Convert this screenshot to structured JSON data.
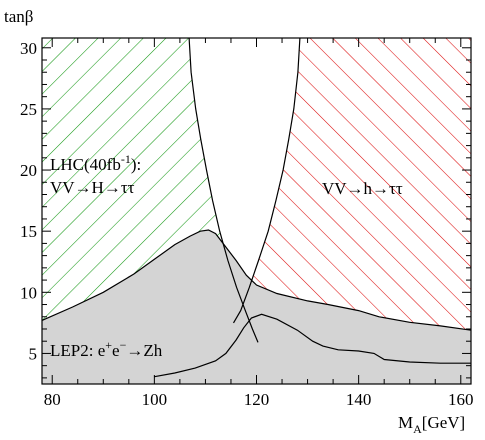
{
  "chart_data": {
    "type": "area",
    "title": "",
    "ylabel": "tanβ",
    "xlabel": {
      "main": "M",
      "sub": "A",
      "unit": "[GeV]"
    },
    "xlim": [
      78,
      162
    ],
    "ylim": [
      2.5,
      30.8
    ],
    "xticks": [
      80,
      100,
      120,
      140,
      160
    ],
    "yticks": [
      5,
      10,
      15,
      20,
      25,
      30
    ],
    "grid": false,
    "legend": "none",
    "annotations": {
      "lhc_line1": {
        "pre": "LHC(40fb",
        "sup": "-1",
        "post": "):"
      },
      "lhc_line2": "VV→H→ττ",
      "h_label": "VV→h→ττ",
      "lep_label": {
        "pre": "LEP2: e",
        "sup1": "+",
        "mid": "e",
        "sup2": "−",
        "post": "→Zh"
      }
    },
    "colors": {
      "green": "#1a9a1a",
      "red": "#dd1111",
      "grey": "#d4d4d4"
    },
    "series": [
      {
        "region": "H-green",
        "boundary_x": [
          106.8,
          107.2,
          108.1,
          109.1,
          110.2,
          111.4,
          112.8,
          114.4,
          116.1,
          117.8,
          119.2,
          120.3
        ],
        "boundary_y": [
          30.8,
          28,
          25,
          22.5,
          20,
          17.5,
          15,
          12.6,
          10.4,
          8.5,
          7,
          5.9
        ]
      },
      {
        "region": "h-red",
        "boundary_x": [
          128.5,
          128.1,
          127.3,
          126.3,
          125.2,
          123.8,
          122.3,
          120.4,
          118.6,
          116.9,
          115.5
        ],
        "boundary_y": [
          30.8,
          28,
          25,
          22.5,
          20,
          17.5,
          15,
          12.6,
          10.4,
          8.5,
          7.5
        ]
      },
      {
        "region": "LEP2-excluded",
        "boundary_x": [
          78,
          84,
          90,
          96,
          100,
          104,
          107,
          109,
          110.6,
          112,
          114,
          116,
          118,
          120,
          124,
          130,
          134,
          140,
          144,
          150,
          156,
          162
        ],
        "boundary_y": [
          7.7,
          8.8,
          10,
          11.5,
          12.7,
          13.9,
          14.6,
          15,
          15.1,
          14.8,
          13.7,
          12.6,
          11.4,
          10.6,
          9.9,
          9.3,
          9.0,
          8.5,
          8.0,
          7.55,
          7.25,
          6.9
        ]
      },
      {
        "region": "LEP2-lower",
        "boundary_x": [
          100,
          104,
          108,
          112,
          114,
          116,
          117.5,
          119,
          121,
          124,
          128,
          131,
          133,
          136,
          140,
          143,
          145,
          150,
          156,
          162
        ],
        "boundary_y": [
          3.1,
          3.4,
          3.8,
          4.4,
          5.0,
          6.1,
          7.1,
          7.9,
          8.2,
          7.8,
          6.9,
          6.0,
          5.6,
          5.3,
          5.2,
          5.0,
          4.5,
          4.3,
          4.2,
          4.2
        ]
      }
    ]
  }
}
